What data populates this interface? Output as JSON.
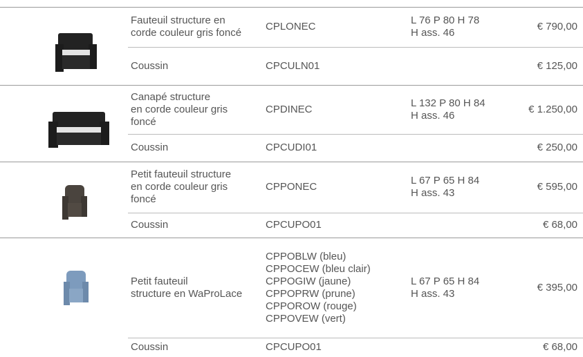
{
  "groups": [
    {
      "product": {
        "description": [
          "Fauteuil structure en",
          "corde couleur gris foncé"
        ],
        "codes": [
          "CPLONEC"
        ],
        "dimensions": [
          "L 76 P 80 H 78",
          "H ass. 46"
        ],
        "price": "€ 790,00"
      },
      "cushion": {
        "description": "Coussin",
        "code": "CPCULN01",
        "price": "€ 125,00"
      }
    },
    {
      "product": {
        "description": [
          "Canapé structure",
          "en corde couleur gris",
          "foncé"
        ],
        "codes": [
          "CPDINEC"
        ],
        "dimensions": [
          "L 132 P 80 H 84",
          "H ass. 46"
        ],
        "price": "€ 1.250,00"
      },
      "cushion": {
        "description": "Coussin",
        "code": "CPCUDI01",
        "price": "€ 250,00"
      }
    },
    {
      "product": {
        "description": [
          "Petit fauteuil structure",
          "en corde couleur gris",
          "foncé"
        ],
        "codes": [
          "CPPONEC"
        ],
        "dimensions": [
          "L 67 P 65 H 84",
          "H ass. 43"
        ],
        "price": "€ 595,00"
      },
      "cushion": {
        "description": "Coussin",
        "code": "CPCUPO01",
        "price": "€ 68,00"
      }
    },
    {
      "product": {
        "description": [
          "Petit fauteuil",
          "structure en WaProLace"
        ],
        "codes": [
          "CPPOBLW (bleu)",
          "CPPOCEW (bleu clair)",
          "CPPOGIW (jaune)",
          "CPPOPRW (prune)",
          "CPPOROW (rouge)",
          "CPPOVEW (vert)"
        ],
        "dimensions": [
          "L 67 P 65 H 84",
          "H ass. 43"
        ],
        "price": "€ 395,00"
      },
      "cushion": {
        "description": "Coussin",
        "code": "CPCUPO01",
        "price": "€ 68,00"
      }
    }
  ]
}
